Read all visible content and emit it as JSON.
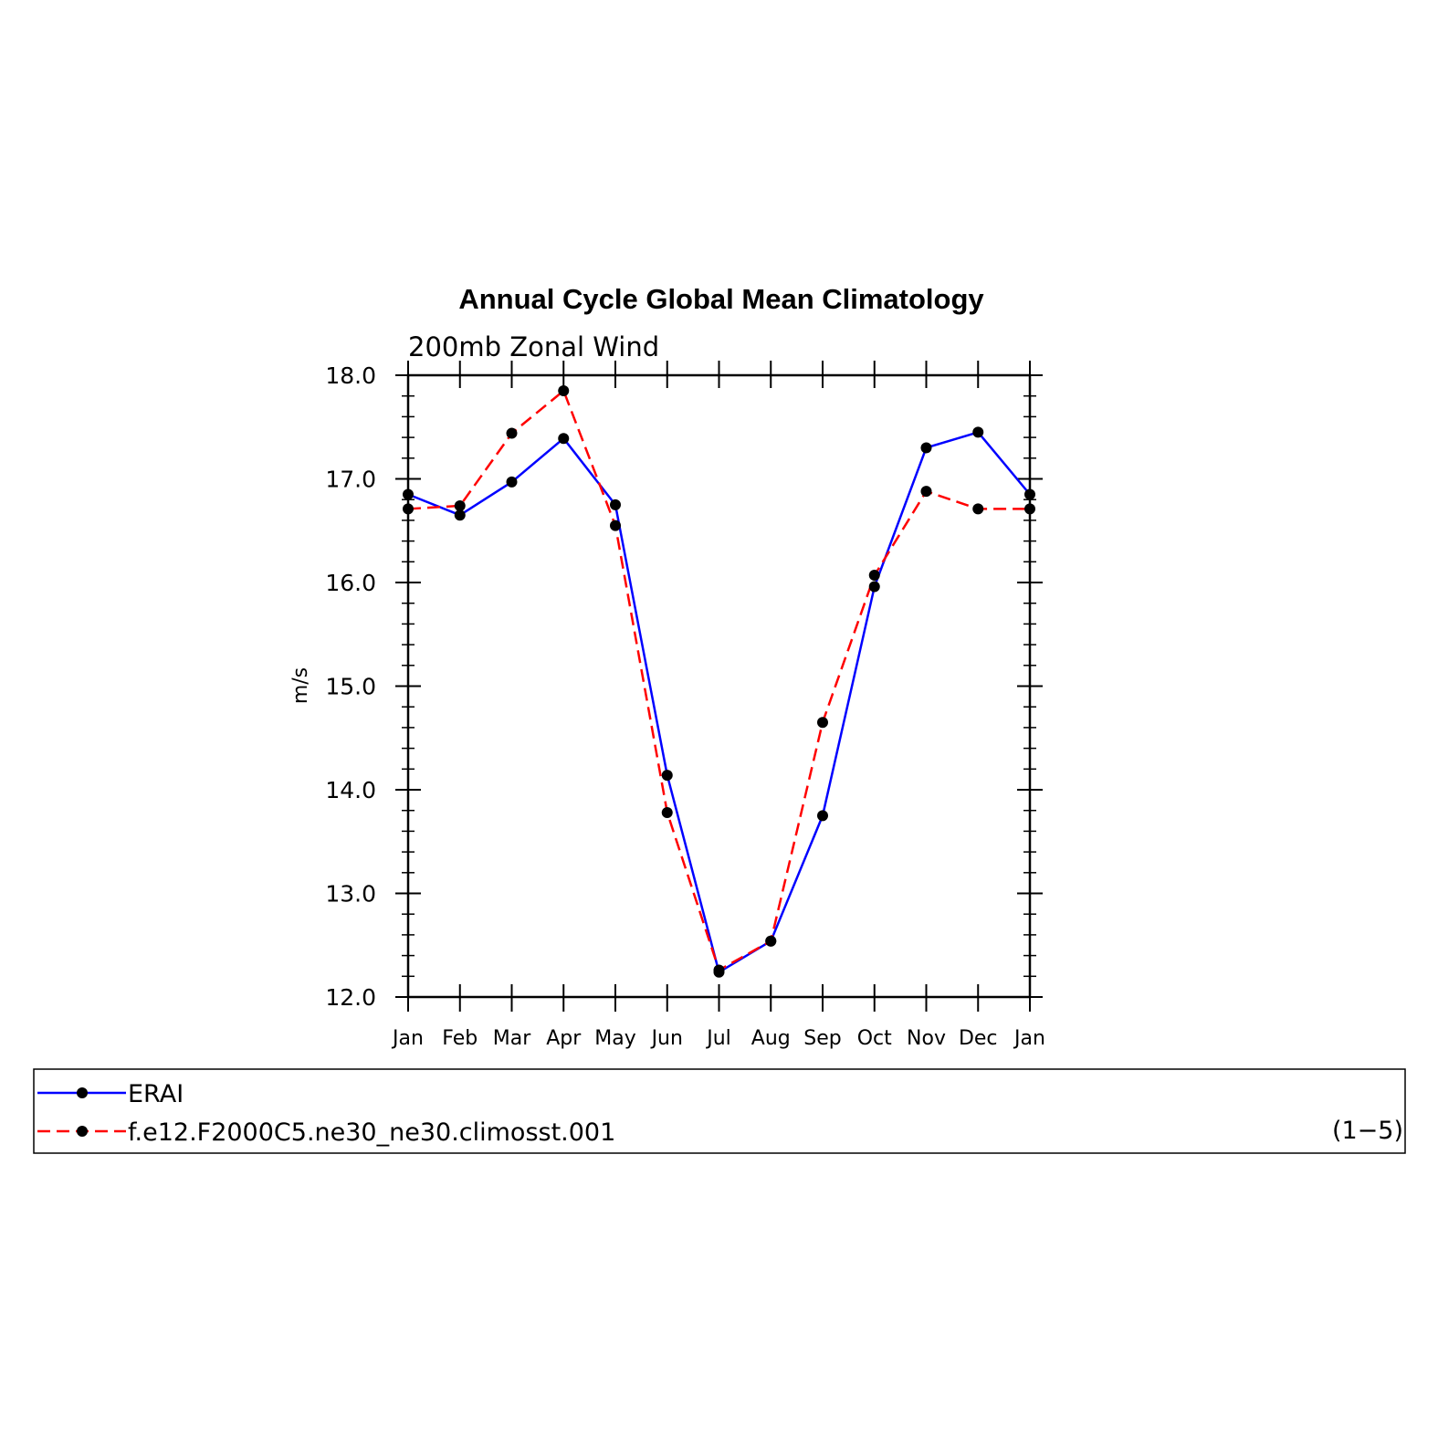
{
  "chart_data": {
    "type": "line",
    "title": "Annual Cycle Global Mean Climatology",
    "subtitle": "200mb Zonal Wind",
    "ylabel": "m/s",
    "xlabel": "",
    "categories": [
      "Jan",
      "Feb",
      "Mar",
      "Apr",
      "May",
      "Jun",
      "Jul",
      "Aug",
      "Sep",
      "Oct",
      "Nov",
      "Dec",
      "Jan"
    ],
    "ylim": [
      12.0,
      18.0
    ],
    "yticks": [
      "12.0",
      "13.0",
      "14.0",
      "15.0",
      "16.0",
      "17.0",
      "18.0"
    ],
    "grid": false,
    "legend_position": "bottom",
    "series": [
      {
        "name": "ERAI",
        "color": "#0000ff",
        "dash": "solid",
        "values": [
          16.85,
          16.65,
          16.97,
          17.39,
          16.75,
          14.14,
          12.24,
          12.54,
          13.75,
          15.96,
          17.3,
          17.45,
          16.85
        ]
      },
      {
        "name": "f.e12.F2000C5.ne30_ne30.climosst.001",
        "color": "#ff0000",
        "dash": "dashed",
        "values": [
          16.71,
          16.74,
          17.44,
          17.85,
          16.55,
          13.78,
          12.26,
          12.54,
          14.65,
          16.07,
          16.88,
          16.71,
          16.71
        ]
      }
    ],
    "legend_note": "(1−5)"
  }
}
